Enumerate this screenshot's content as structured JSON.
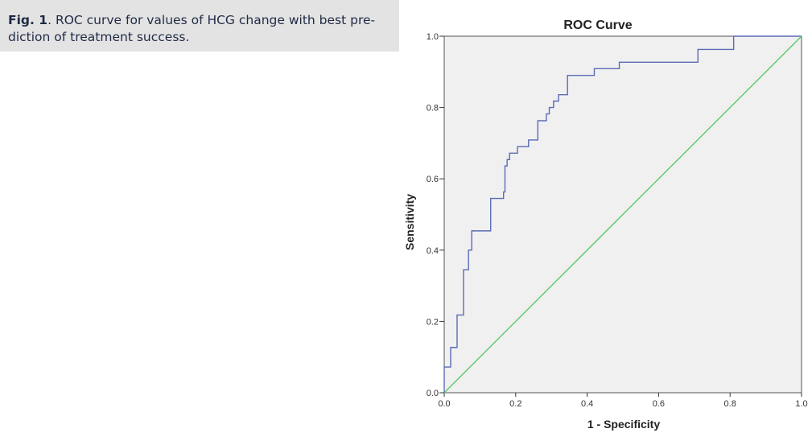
{
  "caption": {
    "fig_label": "Fig. 1",
    "text": "ROC curve for values of HCG change with best prediction of treatment success.",
    "line1": "ROC curve for values of HCG change with best pre-",
    "line2": "diction of treatment success."
  },
  "chart_data": {
    "type": "line",
    "title": "ROC Curve",
    "xlabel": "1 - Specificity",
    "ylabel": "Sensitivity",
    "xlim": [
      0,
      1
    ],
    "ylim": [
      0,
      1
    ],
    "x_ticks": [
      "0.0",
      "0.2",
      "0.4",
      "0.6",
      "0.8",
      "1.0"
    ],
    "y_ticks": [
      "0.0",
      "0.2",
      "0.4",
      "0.6",
      "0.8",
      "1.0"
    ],
    "grid": false,
    "legend": "none",
    "plot_background": "#f0f0f0",
    "series": [
      {
        "color": "#5b6bb5",
        "step": true,
        "points": [
          [
            0.0,
            0.0
          ],
          [
            0.0,
            0.072
          ],
          [
            0.018,
            0.072
          ],
          [
            0.018,
            0.127
          ],
          [
            0.036,
            0.127
          ],
          [
            0.036,
            0.218
          ],
          [
            0.054,
            0.218
          ],
          [
            0.054,
            0.345
          ],
          [
            0.068,
            0.345
          ],
          [
            0.068,
            0.4
          ],
          [
            0.077,
            0.4
          ],
          [
            0.077,
            0.454
          ],
          [
            0.13,
            0.454
          ],
          [
            0.13,
            0.545
          ],
          [
            0.166,
            0.545
          ],
          [
            0.166,
            0.563
          ],
          [
            0.17,
            0.563
          ],
          [
            0.17,
            0.636
          ],
          [
            0.176,
            0.636
          ],
          [
            0.176,
            0.654
          ],
          [
            0.183,
            0.654
          ],
          [
            0.183,
            0.672
          ],
          [
            0.205,
            0.672
          ],
          [
            0.205,
            0.69
          ],
          [
            0.236,
            0.69
          ],
          [
            0.236,
            0.709
          ],
          [
            0.262,
            0.709
          ],
          [
            0.262,
            0.763
          ],
          [
            0.286,
            0.763
          ],
          [
            0.286,
            0.782
          ],
          [
            0.294,
            0.782
          ],
          [
            0.294,
            0.8
          ],
          [
            0.306,
            0.8
          ],
          [
            0.306,
            0.818
          ],
          [
            0.32,
            0.818
          ],
          [
            0.32,
            0.836
          ],
          [
            0.345,
            0.836
          ],
          [
            0.345,
            0.89
          ],
          [
            0.42,
            0.89
          ],
          [
            0.42,
            0.909
          ],
          [
            0.49,
            0.909
          ],
          [
            0.49,
            0.927
          ],
          [
            0.71,
            0.927
          ],
          [
            0.71,
            0.963
          ],
          [
            0.81,
            0.963
          ],
          [
            0.81,
            1.0
          ],
          [
            1.0,
            1.0
          ]
        ]
      },
      {
        "color": "#5cc86a",
        "step": false,
        "points": [
          [
            0,
            0
          ],
          [
            1,
            1
          ]
        ]
      }
    ]
  }
}
